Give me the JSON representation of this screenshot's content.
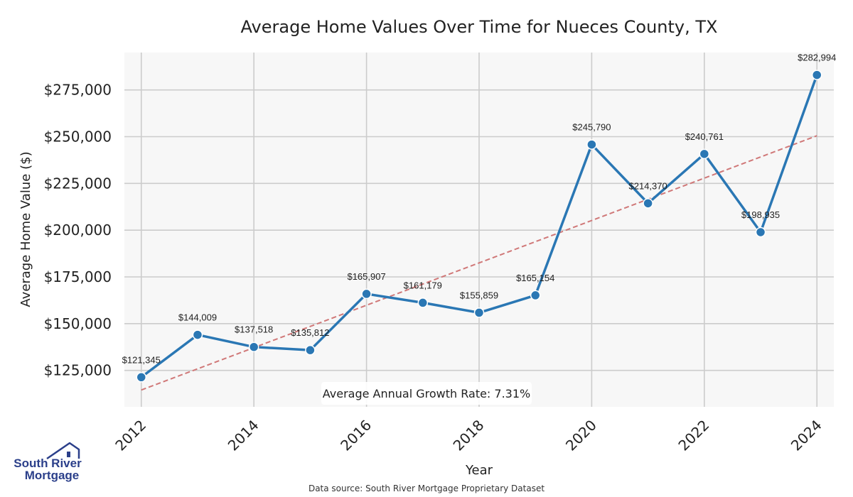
{
  "chart_data": {
    "type": "line",
    "title": "Average Home Values Over Time for Nueces County, TX",
    "xlabel": "Year",
    "ylabel": "Average Home Value ($)",
    "x": [
      2012,
      2013,
      2014,
      2015,
      2016,
      2017,
      2018,
      2019,
      2020,
      2021,
      2022,
      2023,
      2024
    ],
    "series": [
      {
        "name": "Average Home Value",
        "color": "#2a77b4",
        "values": [
          121345,
          144009,
          137518,
          135812,
          165907,
          161179,
          155859,
          165154,
          245790,
          214370,
          240761,
          198935,
          282994
        ],
        "labels": [
          "$121,345",
          "$144,009",
          "$137,518",
          "$135,812",
          "$165,907",
          "$161,179",
          "$155,859",
          "$165,154",
          "$245,790",
          "$214,370",
          "$240,761",
          "$198,935",
          "$282,994"
        ]
      }
    ],
    "trend": {
      "name": "Trend",
      "color": "#d07878",
      "start": [
        2012,
        114500
      ],
      "end": [
        2024,
        250500
      ]
    },
    "xticks": [
      2012,
      2014,
      2016,
      2018,
      2020,
      2022,
      2024
    ],
    "xtick_labels": [
      "2012",
      "2014",
      "2016",
      "2018",
      "2020",
      "2022",
      "2024"
    ],
    "yticks": [
      125000,
      150000,
      175000,
      200000,
      225000,
      250000,
      275000
    ],
    "ytick_labels": [
      "$125,000",
      "$150,000",
      "$175,000",
      "$200,000",
      "$225,000",
      "$250,000",
      "$275,000"
    ],
    "xlim": [
      2011.7,
      2024.3
    ],
    "ylim": [
      105500,
      295000
    ],
    "grid": true,
    "annotation": "Average Annual Growth Rate: 7.31%",
    "annotation_position": "bottom-center"
  },
  "footer": {
    "source": "Data source: South River Mortgage Proprietary Dataset"
  },
  "logo": {
    "line1": "South River",
    "line2": "Mortgage"
  },
  "colors": {
    "plot_bg": "#f7f7f7",
    "grid": "#cccccc",
    "logo": "#2b3f8a"
  }
}
